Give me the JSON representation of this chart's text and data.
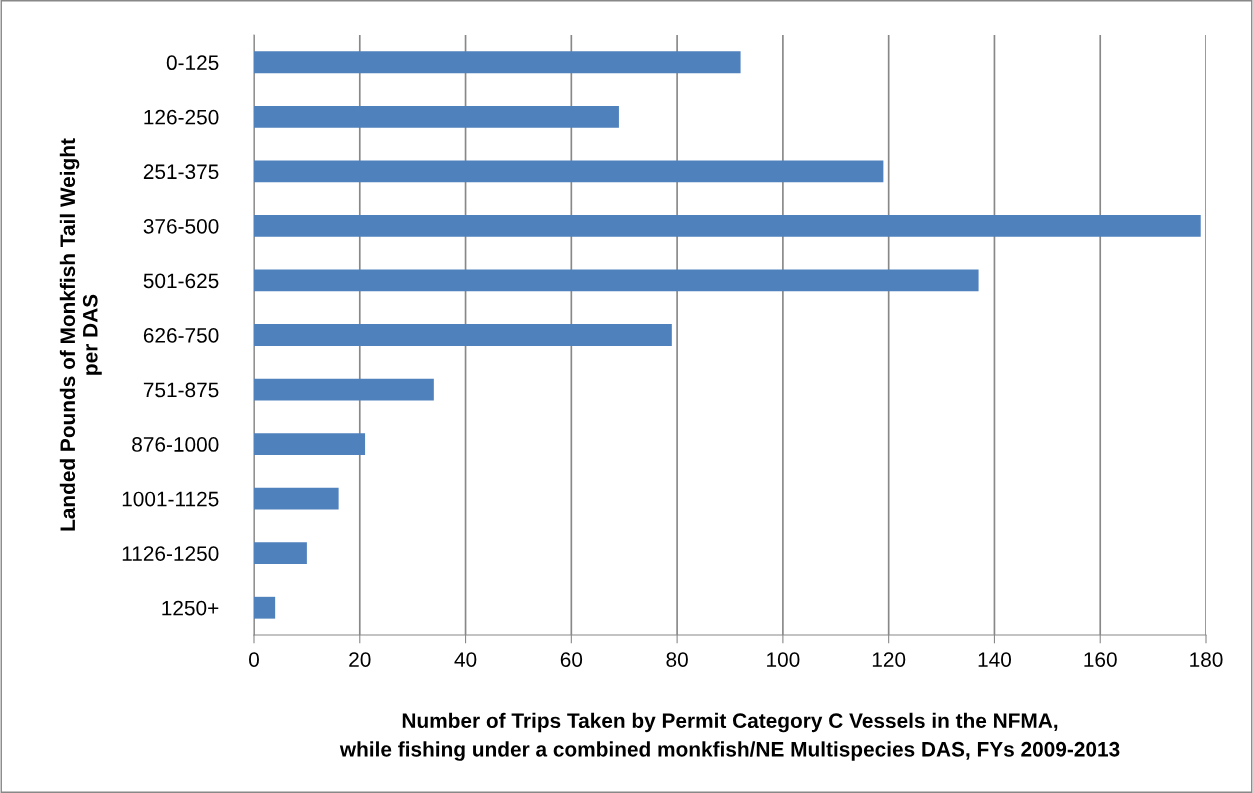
{
  "chart_data": {
    "type": "bar",
    "orientation": "horizontal",
    "xlabel": "Number of Trips Taken by Permit Category C Vessels in the NFMA,\nwhile fishing under a combined monkfish/NE Multispecies DAS, FYs 2009-2013",
    "ylabel": "Landed Pounds of Monkfish Tail Weight\nper DAS",
    "categories": [
      "0-125",
      "126-250",
      "251-375",
      "376-500",
      "501-625",
      "626-750",
      "751-875",
      "876-1000",
      "1001-1125",
      "1126-1250",
      "1250+"
    ],
    "values": [
      92,
      69,
      119,
      179,
      137,
      79,
      34,
      21,
      16,
      10,
      4
    ],
    "color": "#4f81bd",
    "xlim": [
      0,
      180
    ],
    "xticks": [
      0,
      20,
      40,
      60,
      80,
      100,
      120,
      140,
      160,
      180
    ],
    "grid": "x",
    "legend": false
  }
}
